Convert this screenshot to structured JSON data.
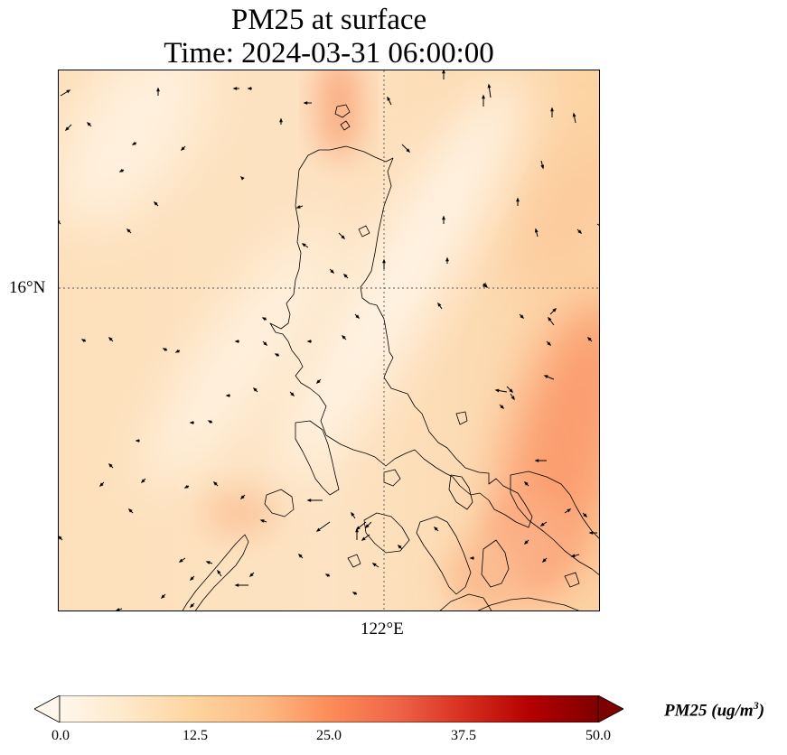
{
  "title": {
    "line1": "PM25 at surface",
    "line2": "Time: 2024-03-31 06:00:00"
  },
  "map": {
    "gridline_latitude_label": "16°N",
    "gridline_longitude_label": "122°E",
    "field": "PM25",
    "coastline_color": "#000000",
    "wind_arrow_color": "#000000"
  },
  "colorbar": {
    "colormap": "OrRd",
    "min": 0.0,
    "max": 50.0,
    "extend": "both",
    "ticks": [
      "0.0",
      "12.5",
      "25.0",
      "37.5",
      "50.0"
    ],
    "label_main": "PM25 (ug/m",
    "label_exp": "3",
    "label_close": ")",
    "stops": [
      "#fff7ec",
      "#fee8c8",
      "#fdd49e",
      "#fdbb84",
      "#fc8d59",
      "#ef6548",
      "#d7301f",
      "#b30000",
      "#7f0000"
    ]
  }
}
